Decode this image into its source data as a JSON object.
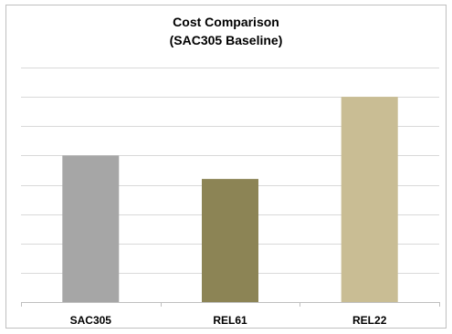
{
  "chart_data": {
    "type": "bar",
    "title_line1": "Cost Comparison",
    "title_line2": "(SAC305 Baseline)",
    "categories": [
      "SAC305",
      "REL61",
      "REL22"
    ],
    "values": [
      5,
      4.2,
      7
    ],
    "ylim": [
      0,
      8
    ],
    "y_gridlines": 8,
    "grid": true,
    "y_tick_labels_shown": false,
    "legend": "none",
    "colors": [
      "#a6a6a6",
      "#8c8455",
      "#c9bd94"
    ],
    "gridline_color": "#d9d9d9",
    "axis_color": "#bfbfbf"
  }
}
